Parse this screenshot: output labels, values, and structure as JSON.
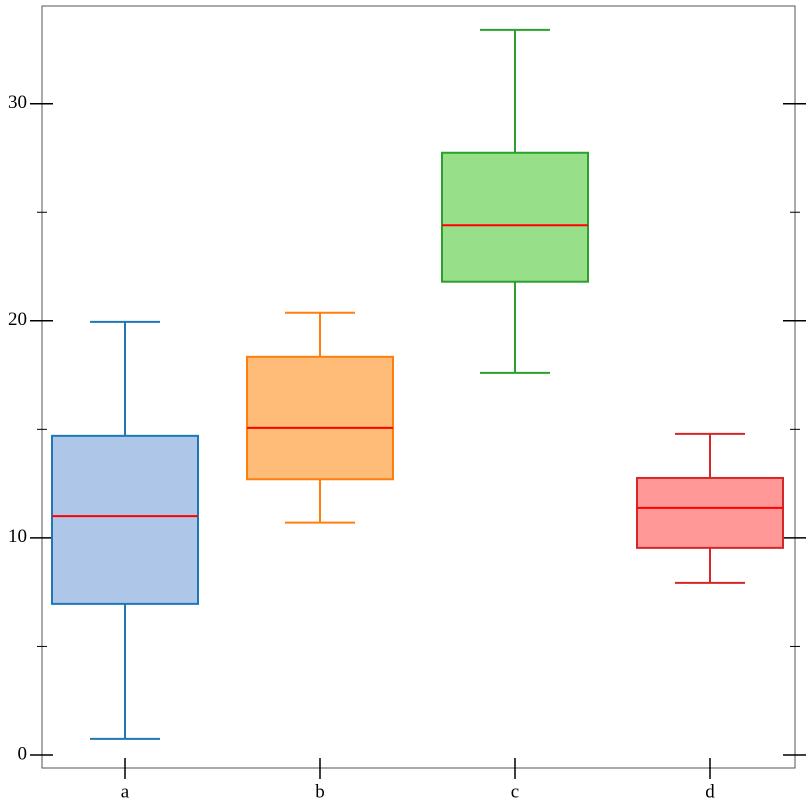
{
  "chart_data": {
    "type": "box",
    "categories": [
      "a",
      "b",
      "c",
      "d"
    ],
    "boxes": [
      {
        "whislo": 0.74,
        "q1": 6.96,
        "med": 11.0,
        "q3": 14.7,
        "whishi": 19.95,
        "fill": "#aec7e8",
        "color": "#1f77b4"
      },
      {
        "whislo": 10.7,
        "q1": 12.7,
        "med": 15.07,
        "q3": 18.34,
        "whishi": 20.37,
        "fill": "#ffbb78",
        "color": "#ff7f0e"
      },
      {
        "whislo": 17.6,
        "q1": 21.8,
        "med": 24.4,
        "q3": 27.74,
        "whishi": 33.4,
        "fill": "#98df8a",
        "color": "#2ca02c"
      },
      {
        "whislo": 7.93,
        "q1": 9.54,
        "med": 11.38,
        "q3": 12.76,
        "whishi": 14.79,
        "fill": "#ff9896",
        "color": "#d62728"
      }
    ],
    "median_color": "#ff0000",
    "ylim": [
      -0.6,
      34.5
    ],
    "yticks": [
      0,
      10,
      20,
      30
    ],
    "minor_yticks": [
      5,
      15,
      25
    ]
  }
}
